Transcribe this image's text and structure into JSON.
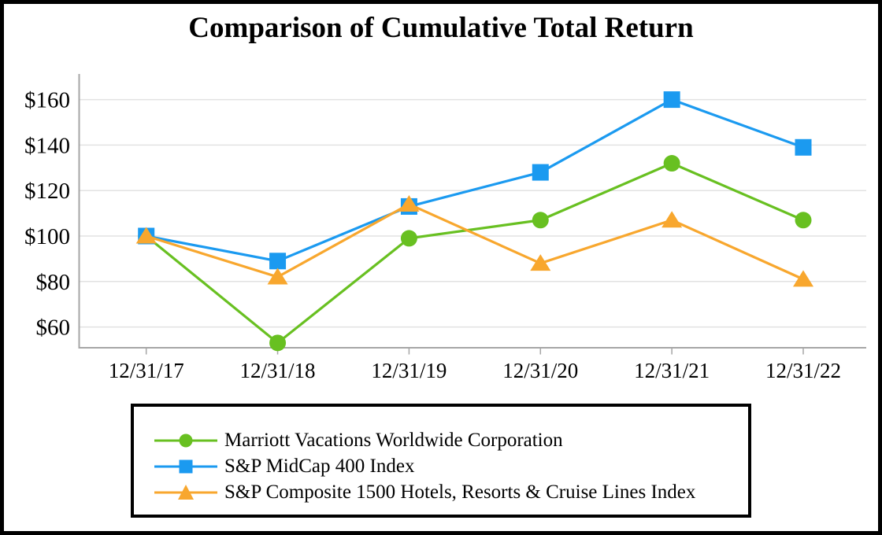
{
  "window": {
    "background": "#FFFFFF",
    "frame_border_color": "#000000"
  },
  "chart_data": {
    "type": "line",
    "title": "Comparison of Cumulative Total Return",
    "categories": [
      "12/31/17",
      "12/31/18",
      "12/31/19",
      "12/31/20",
      "12/31/21",
      "12/31/22"
    ],
    "series": [
      {
        "name": "Marriott Vacations Worldwide Corporation",
        "marker": "circle",
        "color": "#68C021",
        "values": [
          100,
          53,
          99,
          107,
          132,
          107
        ]
      },
      {
        "name": "S&P MidCap 400 Index",
        "marker": "square",
        "color": "#1B9AF0",
        "values": [
          100,
          89,
          113,
          128,
          160,
          139
        ]
      },
      {
        "name": "S&P Composite 1500 Hotels, Resorts & Cruise Lines Index",
        "marker": "triangle",
        "color": "#F8A72E",
        "values": [
          100,
          82,
          114,
          88,
          107,
          81
        ]
      }
    ],
    "y_axis": {
      "tick_prefix": "$",
      "tick_values": [
        160,
        140,
        120,
        100,
        80,
        60
      ],
      "min": 51,
      "max": 171
    },
    "xlabel": "",
    "ylabel": "",
    "grid": true,
    "legend_position": "bottom",
    "axis_color": "#A6A6A6",
    "gridline_color": "#E2E2E2"
  }
}
